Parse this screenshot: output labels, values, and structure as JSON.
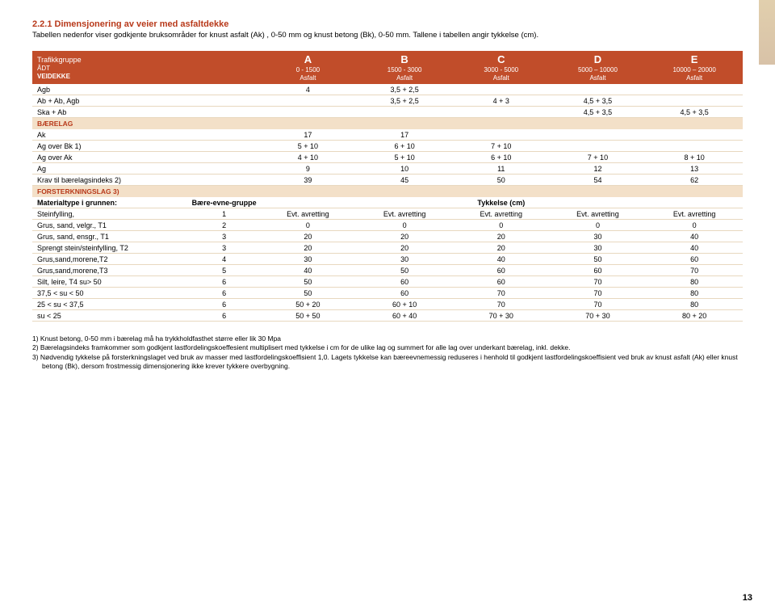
{
  "heading": "2.2.1 Dimensjonering av veier med asfaltdekke",
  "subtitle": "Tabellen nedenfor viser godkjente bruksområder for knust asfalt (Ak) , 0-50 mm og knust betong (Bk), 0-50 mm. Tallene i tabellen angir tykkelse (cm).",
  "h": {
    "traffic": "Trafikkgruppe",
    "adt": "ÅDT",
    "veidekke": "VEIDEKKE",
    "cols": [
      {
        "big": "A",
        "small": "0 - 1500",
        "mat": "Asfalt"
      },
      {
        "big": "B",
        "small": "1500 - 3000",
        "mat": "Asfalt"
      },
      {
        "big": "C",
        "small": "3000 - 5000",
        "mat": "Asfalt"
      },
      {
        "big": "D",
        "small": "5000 – 10000",
        "mat": "Asfalt"
      },
      {
        "big": "E",
        "small": "10000 – 20000",
        "mat": "Asfalt"
      }
    ]
  },
  "top_rows": [
    {
      "l": "Agb",
      "v": [
        "4",
        "3,5 + 2,5",
        "",
        "",
        ""
      ]
    },
    {
      "l": "Ab + Ab, Agb",
      "v": [
        "",
        "3,5 + 2,5",
        "4 + 3",
        "4,5 + 3,5",
        ""
      ]
    },
    {
      "l": "Ska + Ab",
      "v": [
        "",
        "",
        "",
        "4,5 + 3,5",
        "4,5 + 3,5"
      ]
    }
  ],
  "baerelag": "BÆRELAG",
  "baerelag_rows": [
    {
      "l": "Ak",
      "v": [
        "17",
        "17",
        "",
        "",
        ""
      ]
    },
    {
      "l": "Ag over Bk 1)",
      "v": [
        "5 + 10",
        "6 + 10",
        "7 + 10",
        "",
        ""
      ]
    },
    {
      "l": "Ag over Ak",
      "v": [
        "4 + 10",
        "5 + 10",
        "6 + 10",
        "7 + 10",
        "8 + 10"
      ]
    },
    {
      "l": "Ag",
      "v": [
        "9",
        "10",
        "11",
        "12",
        "13"
      ]
    },
    {
      "l": "Krav til bærelagsindeks 2)",
      "v": [
        "39",
        "45",
        "50",
        "54",
        "62"
      ]
    }
  ],
  "forst": "FORSTERKNINGSLAG 3)",
  "mat_head": {
    "label": "Materialtype i grunnen:",
    "col1": "Bære-evne-gruppe",
    "col2": "Tykkelse (cm)"
  },
  "mat_rows": [
    {
      "l": "Steinfylling,",
      "g": "1",
      "v": [
        "Evt. avretting",
        "Evt. avretting",
        "Evt. avretting",
        "Evt. avretting",
        "Evt. avretting"
      ]
    },
    {
      "l": "Grus, sand, velgr., T1",
      "g": "2",
      "v": [
        "0",
        "0",
        "0",
        "0",
        "0"
      ]
    },
    {
      "l": "Grus, sand, ensgr., T1",
      "g": "3",
      "v": [
        "20",
        "20",
        "20",
        "30",
        "40"
      ]
    },
    {
      "l": "Sprengt stein/steinfylling, T2",
      "g": "3",
      "v": [
        "20",
        "20",
        "20",
        "30",
        "40"
      ]
    },
    {
      "l": "Grus,sand,morene,T2",
      "g": "4",
      "v": [
        "30",
        "30",
        "40",
        "50",
        "60"
      ]
    },
    {
      "l": "Grus,sand,morene,T3",
      "g": "5",
      "v": [
        "40",
        "50",
        "60",
        "60",
        "70"
      ]
    },
    {
      "l": "Silt, leire, T4 su> 50",
      "g": "6",
      "v": [
        "50",
        "60",
        "60",
        "70",
        "80"
      ]
    },
    {
      "l": "37,5 < su < 50",
      "g": "6",
      "v": [
        "50",
        "60",
        "70",
        "70",
        "80"
      ]
    },
    {
      "l": "25 < su < 37,5",
      "g": "6",
      "v": [
        "50 + 20",
        "60 + 10",
        "70",
        "70",
        "80"
      ]
    },
    {
      "l": "su < 25",
      "g": "6",
      "v": [
        "50 + 50",
        "60 + 40",
        "70 + 30",
        "70 + 30",
        "80 + 20"
      ]
    }
  ],
  "notes": [
    "1) Knust betong, 0-50 mm i bærelag må ha trykkholdfasthet større eller lik 30 Mpa",
    "2) Bærelagsindeks framkommer som godkjent lastfordelingskoeffesient multiplisert med tykkelse i cm for de ulike lag og summert for alle lag over underkant bærelag, inkl. dekke.",
    "3) Nødvendig tykkelse på forsterkningslaget ved bruk av masser med lastfordelingskoeffisient 1,0. Lagets tykkelse kan bæreevnemessig reduseres i henhold til godkjent lastfordelingskoeffisient ved bruk av knust asfalt (Ak) eller knust betong (Bk), dersom frostmessig dimensjonering ikke krever tykkere overbygning."
  ],
  "page": "13"
}
